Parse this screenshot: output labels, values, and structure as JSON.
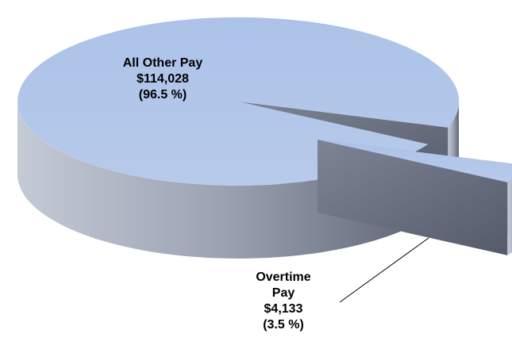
{
  "chart_data": {
    "type": "pie3d",
    "categories": [
      "All Other Pay",
      "Overtime Pay"
    ],
    "values": [
      114028,
      4133
    ],
    "value_labels": [
      "$114,028",
      "$4,133"
    ],
    "percents": [
      96.5,
      3.5
    ],
    "percent_labels": [
      "(96.5 %)",
      "(3.5 %)"
    ],
    "colors": [
      "#a9c0e6",
      "#a9c0e6"
    ]
  }
}
